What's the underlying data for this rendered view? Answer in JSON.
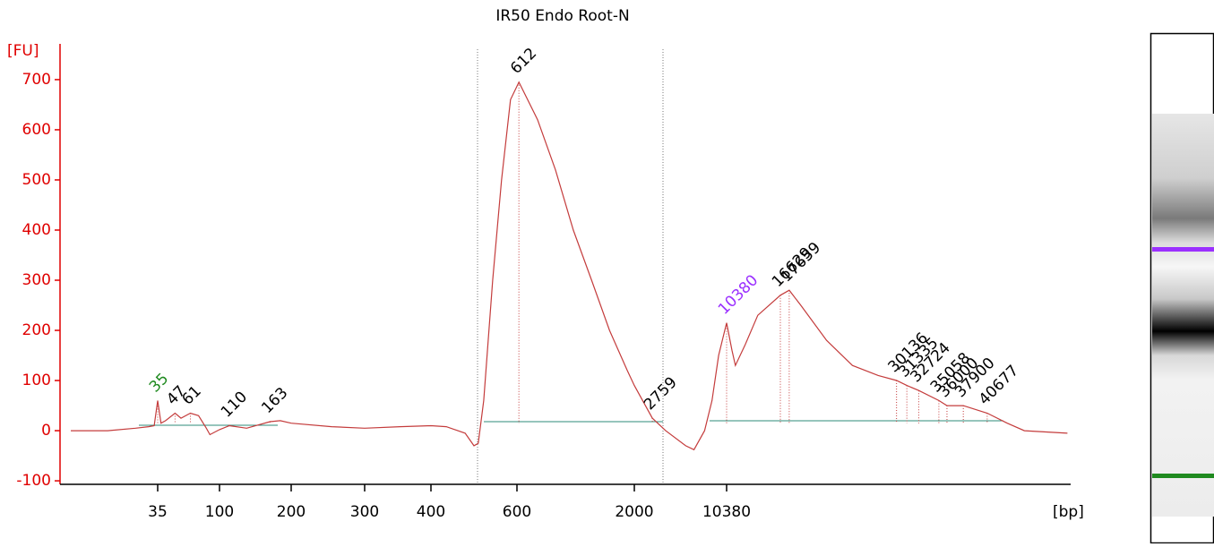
{
  "chart_data": {
    "type": "line",
    "title": "IR50 Endo Root-N",
    "y_label": "[FU]",
    "x_label": "[bp]",
    "x": [
      8,
      15,
      24,
      30,
      33,
      35,
      37,
      40,
      47,
      52,
      61,
      70,
      80,
      85,
      100,
      110,
      130,
      163,
      180,
      200,
      250,
      300,
      350,
      400,
      430,
      470,
      490,
      500,
      513,
      535,
      558,
      582,
      612,
      741,
      891,
      1070,
      1290,
      1550,
      1860,
      2000,
      2759,
      3500,
      5000,
      5800,
      7000,
      8000,
      9000,
      10380,
      11000,
      11400,
      12500,
      14000,
      16629,
      17659,
      19000,
      22000,
      25000,
      28000,
      30136,
      31335,
      32724,
      35058,
      36000,
      37900,
      40677,
      43000,
      45000,
      50000
    ],
    "values": [
      0,
      0,
      5,
      8,
      10,
      60,
      15,
      20,
      35,
      25,
      35,
      30,
      5,
      -8,
      2,
      10,
      5,
      18,
      20,
      15,
      8,
      5,
      8,
      10,
      8,
      -5,
      -30,
      -25,
      60,
      300,
      500,
      660,
      695,
      620,
      520,
      400,
      300,
      200,
      120,
      90,
      25,
      0,
      -30,
      -38,
      0,
      60,
      150,
      215,
      160,
      130,
      170,
      230,
      270,
      280,
      250,
      180,
      130,
      110,
      100,
      90,
      80,
      60,
      50,
      50,
      35,
      15,
      0,
      -5
    ],
    "color": "#c43c3c",
    "axis_color": "#e00000",
    "ylim": [
      -107,
      757
    ],
    "yticks": [
      -100,
      0,
      100,
      200,
      300,
      400,
      500,
      600,
      700
    ],
    "xticks": [
      35,
      100,
      200,
      300,
      400,
      600,
      2000,
      10380
    ],
    "peaks": [
      35,
      47,
      61,
      110,
      163,
      612,
      2759,
      10380,
      16629,
      17659,
      30136,
      31335,
      32724,
      35058,
      36000,
      37900,
      40677
    ],
    "peak_colors": [
      "#1f8a1f",
      "#000000",
      "#000000",
      "#000000",
      "#000000",
      "#000000",
      "#000000",
      "#9b30ff",
      "#000000",
      "#000000",
      "#000000",
      "#000000",
      "#000000",
      "#000000",
      "#000000",
      "#000000",
      "#000000"
    ]
  }
}
